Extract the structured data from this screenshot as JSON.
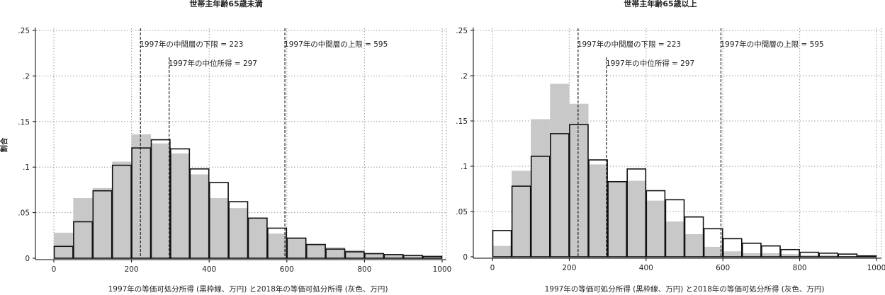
{
  "chart_data": [
    {
      "type": "histogram",
      "title": "世帯主年齢65歳未満",
      "xlabel": "1997年の等価可処分所得 (黒枠線、万円) と2018年の等価可処分所得 (灰色、万円)",
      "ylabel": "割合",
      "xlim": [
        0,
        1000
      ],
      "ylim": [
        0,
        0.25
      ],
      "x_ticks": [
        0,
        200,
        400,
        600,
        800,
        1000
      ],
      "y_ticks": [
        0,
        0.05,
        0.1,
        0.15,
        0.2,
        0.25
      ],
      "x_tick_labels": [
        "0",
        "200",
        "400",
        "600",
        "800",
        "1000"
      ],
      "y_tick_labels": [
        "0",
        ".05",
        ".1",
        ".15",
        ".2",
        ".25"
      ],
      "grid": true,
      "bin_width": 50,
      "bins": [
        0,
        50,
        100,
        150,
        200,
        250,
        300,
        350,
        400,
        450,
        500,
        550,
        600,
        650,
        700,
        750,
        800,
        850,
        900,
        950
      ],
      "series": [
        {
          "style": "outline",
          "color": "#111111",
          "values": [
            0.013,
            0.04,
            0.074,
            0.102,
            0.121,
            0.13,
            0.12,
            0.098,
            0.083,
            0.062,
            0.044,
            0.033,
            0.022,
            0.015,
            0.01,
            0.007,
            0.005,
            0.004,
            0.003,
            0.002
          ]
        },
        {
          "style": "fill",
          "color": "#c8c8c8",
          "values": [
            0.028,
            0.066,
            0.077,
            0.106,
            0.136,
            0.126,
            0.115,
            0.092,
            0.066,
            0.055,
            0.044,
            0.027,
            0.023,
            0.016,
            0.012,
            0.009,
            0.006,
            0.004,
            0.003,
            0.002
          ]
        }
      ],
      "reference_lines": [
        {
          "x": 223,
          "label": "1997年の中間層の下限 = 223"
        },
        {
          "x": 297,
          "label": "1997年の中位所得 = 297"
        },
        {
          "x": 595,
          "label": "1997年の中間層の上限 = 595"
        }
      ]
    },
    {
      "type": "histogram",
      "title": "世帯主年齢65歳以上",
      "xlabel": "1997年の等価可処分所得 (黒枠線、万円) と2018年の等価可処分所得 (灰色、万円)",
      "ylabel": "",
      "xlim": [
        0,
        1000
      ],
      "ylim": [
        0,
        0.25
      ],
      "x_ticks": [
        0,
        200,
        400,
        600,
        800,
        1000
      ],
      "y_ticks": [
        0,
        0.05,
        0.1,
        0.15,
        0.2,
        0.25
      ],
      "x_tick_labels": [
        "0",
        "200",
        "400",
        "600",
        "800",
        "1000"
      ],
      "y_tick_labels": [
        "0",
        ".05",
        ".1",
        ".15",
        ".2",
        ".25"
      ],
      "grid": true,
      "bin_width": 50,
      "bins": [
        0,
        50,
        100,
        150,
        200,
        250,
        300,
        350,
        400,
        450,
        500,
        550,
        600,
        650,
        700,
        750,
        800,
        850,
        900,
        950
      ],
      "series": [
        {
          "style": "outline",
          "color": "#111111",
          "values": [
            0.029,
            0.078,
            0.111,
            0.136,
            0.146,
            0.107,
            0.083,
            0.097,
            0.073,
            0.063,
            0.044,
            0.031,
            0.02,
            0.015,
            0.012,
            0.008,
            0.005,
            0.004,
            0.003,
            0.001
          ]
        },
        {
          "style": "fill",
          "color": "#c8c8c8",
          "values": [
            0.012,
            0.095,
            0.152,
            0.191,
            0.169,
            0.102,
            0.083,
            0.084,
            0.062,
            0.039,
            0.025,
            0.011,
            0.006,
            0.004,
            0.004,
            0.003,
            0.002,
            0.002,
            0.001,
            0.001
          ]
        }
      ],
      "reference_lines": [
        {
          "x": 223,
          "label": "1997年の中間層の下限 = 223"
        },
        {
          "x": 297,
          "label": "1997年の中位所得 = 297"
        },
        {
          "x": 595,
          "label": "1997年の中間層の上限 = 595"
        }
      ]
    }
  ]
}
